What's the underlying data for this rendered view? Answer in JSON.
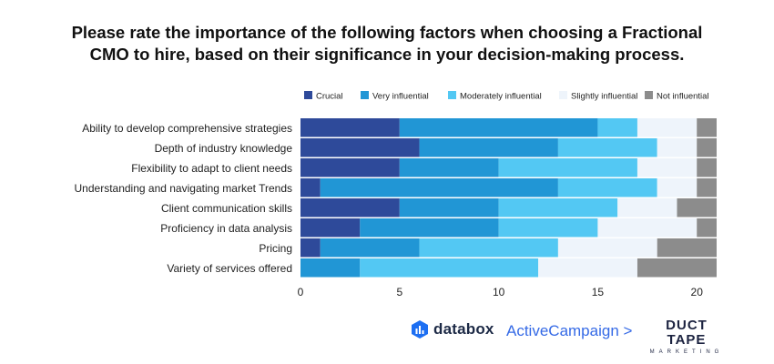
{
  "chart_data": {
    "type": "bar",
    "orientation": "horizontal",
    "stacked": true,
    "title_lines": [
      "Please rate the importance of the following factors when choosing a Fractional",
      "CMO to hire, based on their significance in your decision-making process."
    ],
    "categories": [
      "Ability to develop comprehensive strategies",
      "Depth of industry knowledge",
      "Flexibility to adapt to client needs",
      "Understanding and navigating market Trends",
      "Client communication skills",
      "Proficiency in data analysis",
      "Pricing",
      "Variety of services offered"
    ],
    "series": [
      {
        "name": "Crucial",
        "color": "#2e4a9a",
        "values": [
          5,
          6,
          5,
          1,
          5,
          3,
          1,
          0
        ]
      },
      {
        "name": "Very influential",
        "color": "#2196d5",
        "values": [
          10,
          7,
          5,
          12,
          5,
          7,
          5,
          3
        ]
      },
      {
        "name": "Moderately influential",
        "color": "#53c8f3",
        "values": [
          2,
          5,
          7,
          5,
          6,
          5,
          7,
          9
        ]
      },
      {
        "name": "Slightly influential",
        "color": "#eef4fb",
        "values": [
          3,
          2,
          3,
          2,
          3,
          5,
          5,
          5
        ]
      },
      {
        "name": "Not influential",
        "color": "#8c8c8c",
        "values": [
          1,
          1,
          1,
          1,
          2,
          1,
          3,
          4
        ]
      }
    ],
    "xlim": [
      0,
      21
    ],
    "xticks": [
      0,
      5,
      10,
      15,
      20
    ],
    "xlabel": "",
    "ylabel": "",
    "grid": false,
    "legend_position": "top-right"
  },
  "branding": {
    "databox": "databox",
    "activecampaign": "ActiveCampaign >",
    "ducttape_main": "DUCT TAPE",
    "ducttape_sub": "MARKETING"
  }
}
